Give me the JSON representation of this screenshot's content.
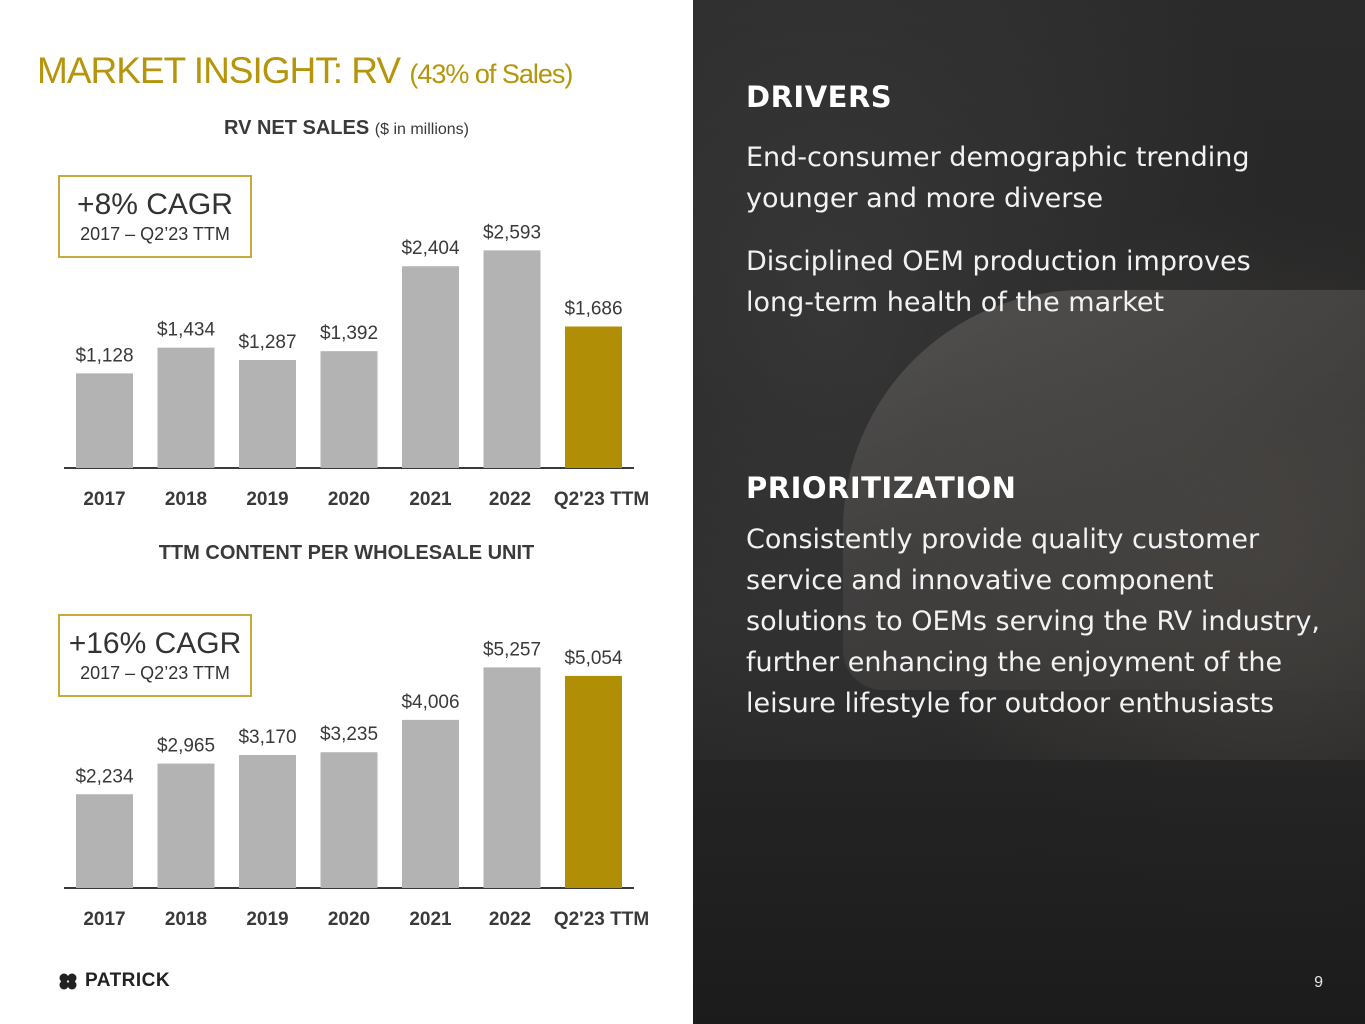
{
  "title": {
    "main": "MARKET INSIGHT: RV",
    "sub": "(43% of Sales)"
  },
  "colors": {
    "accent": "#b5950c",
    "bar_gray": "#b3b3b3",
    "bar_highlight": "#b08f06"
  },
  "chart_data": [
    {
      "type": "bar",
      "title": "RV NET SALES",
      "title_unit": "($ in millions)",
      "categories": [
        "2017",
        "2018",
        "2019",
        "2020",
        "2021",
        "2022",
        "Q2'23 TTM"
      ],
      "values": [
        1128,
        1434,
        1287,
        1392,
        2404,
        2593,
        1686
      ],
      "value_labels": [
        "$1,128",
        "$1,434",
        "$1,287",
        "$1,392",
        "$2,404",
        "$2,593",
        "$1,686"
      ],
      "ylim": [
        0,
        2800
      ],
      "highlight_index": 6,
      "cagr": {
        "value": "+8%  CAGR",
        "period": "2017 – Q2’23 TTM"
      }
    },
    {
      "type": "bar",
      "title": "TTM CONTENT PER WHOLESALE UNIT",
      "title_unit": "",
      "categories": [
        "2017",
        "2018",
        "2019",
        "2020",
        "2021",
        "2022",
        "Q2'23 TTM"
      ],
      "values": [
        2234,
        2965,
        3170,
        3235,
        4006,
        5257,
        5054
      ],
      "value_labels": [
        "$2,234",
        "$2,965",
        "$3,170",
        "$3,235",
        "$4,006",
        "$5,257",
        "$5,054"
      ],
      "ylim": [
        0,
        5600
      ],
      "highlight_index": 6,
      "cagr": {
        "value": "+16% CAGR",
        "period": "2017 – Q2’23 TTM"
      }
    }
  ],
  "drivers": {
    "heading": "DRIVERS",
    "points": [
      "End-consumer demographic trending younger and more diverse",
      "Disciplined OEM production improves long-term health of the market"
    ]
  },
  "prioritization": {
    "heading": "PRIORITIZATION",
    "text": "Consistently provide quality customer service and innovative component solutions to OEMs serving the RV industry, further enhancing the enjoyment of the leisure lifestyle for outdoor enthusiasts"
  },
  "logo": {
    "text": "PATRICK",
    "icon": "clover-icon"
  },
  "page_number": "9"
}
